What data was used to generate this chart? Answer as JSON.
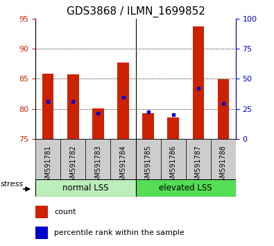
{
  "title": "GDS3868 / ILMN_1699852",
  "samples": [
    "GSM591781",
    "GSM591782",
    "GSM591783",
    "GSM591784",
    "GSM591785",
    "GSM591786",
    "GSM591787",
    "GSM591788"
  ],
  "count_values": [
    85.8,
    85.7,
    80.1,
    87.7,
    79.3,
    78.6,
    93.7,
    84.9
  ],
  "percentile_values": [
    81.2,
    81.2,
    79.3,
    81.9,
    79.5,
    79.0,
    83.4,
    80.9
  ],
  "ylim": [
    75,
    95
  ],
  "yticks_left": [
    75,
    80,
    85,
    90,
    95
  ],
  "yticks_right": [
    0,
    25,
    50,
    75,
    100
  ],
  "bar_bottom": 75,
  "bar_color": "#cc2200",
  "percentile_color": "#0000cc",
  "group1_label": "normal LSS",
  "group2_label": "elevated LSS",
  "group1_bg": "#bbeebb",
  "group2_bg": "#55dd55",
  "stress_label": "stress",
  "legend_count": "count",
  "legend_percentile": "percentile rank within the sample",
  "title_fontsize": 11,
  "axis_color_left": "#cc2200",
  "axis_color_right": "#0000cc",
  "bar_width": 0.45,
  "xticklabel_bg": "#cccccc"
}
